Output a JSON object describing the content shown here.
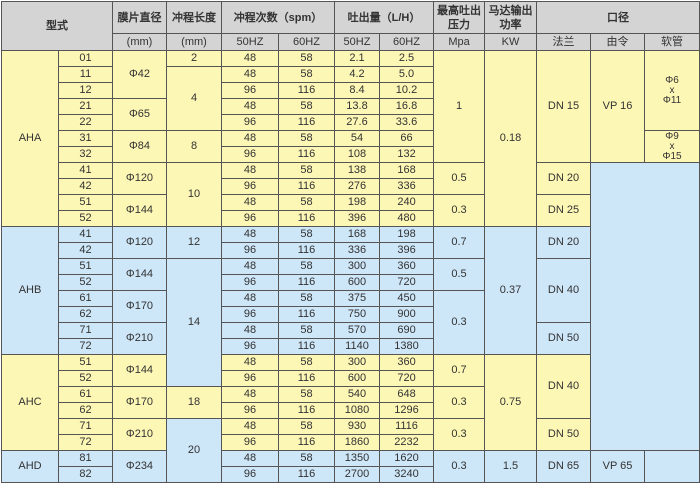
{
  "header": {
    "model": "型式",
    "diaphragm": "膜片直径",
    "stroke": "冲程长度",
    "spm": "冲程次数（spm）",
    "flow": "吐出量（L/H）",
    "pressure": "最高吐出压力",
    "power": "马达输出功率",
    "port": "口径",
    "diaphragm_unit": "(mm)",
    "stroke_unit": "(mm)",
    "hz50": "50HZ",
    "hz60": "60HZ",
    "pressure_unit": "Mpa",
    "power_unit": "KW",
    "flange": "法兰",
    "union": "由令",
    "hose": "软管"
  },
  "colors": {
    "header": "#d4d4d4",
    "yellow": "#fdf7b5",
    "blue": "#cde6f8"
  },
  "models": [
    "AHA",
    "AHB",
    "AHC",
    "AHD"
  ],
  "diaphragm": [
    "Φ42",
    "Φ65",
    "Φ84",
    "Φ120",
    "Φ144",
    "Φ120",
    "Φ144",
    "Φ170",
    "Φ210",
    "Φ144",
    "Φ170",
    "Φ210",
    "Φ234"
  ],
  "stroke": [
    "2",
    "4",
    "8",
    "10",
    "12",
    "14",
    "18",
    "20"
  ],
  "pressure": [
    "1",
    "0.5",
    "0.3",
    "0.7",
    "0.5",
    "0.3",
    "0.7",
    "0.3",
    "0.3",
    "0.3"
  ],
  "power": [
    "0.18",
    "0.37",
    "0.75",
    "1.5"
  ],
  "flange": [
    "DN 15",
    "DN 20",
    "DN 25",
    "DN 20",
    "DN 40",
    "DN 50",
    "DN 40",
    "DN 50",
    "DN 65"
  ],
  "union": [
    "VP 16",
    "VP 65"
  ],
  "hose": [
    {
      "a": "Φ6",
      "x": "x",
      "b": "Φ11"
    },
    {
      "a": "Φ9",
      "x": "x",
      "b": "Φ15"
    }
  ],
  "rows": [
    {
      "c": "01",
      "s5": "48",
      "s6": "58",
      "f5": "2.1",
      "f6": "2.5"
    },
    {
      "c": "11",
      "s5": "48",
      "s6": "58",
      "f5": "4.2",
      "f6": "5.0"
    },
    {
      "c": "12",
      "s5": "96",
      "s6": "116",
      "f5": "8.4",
      "f6": "10.2"
    },
    {
      "c": "21",
      "s5": "48",
      "s6": "58",
      "f5": "13.8",
      "f6": "16.8"
    },
    {
      "c": "22",
      "s5": "96",
      "s6": "116",
      "f5": "27.6",
      "f6": "33.6"
    },
    {
      "c": "31",
      "s5": "48",
      "s6": "58",
      "f5": "54",
      "f6": "66"
    },
    {
      "c": "32",
      "s5": "96",
      "s6": "116",
      "f5": "108",
      "f6": "132"
    },
    {
      "c": "41",
      "s5": "48",
      "s6": "58",
      "f5": "138",
      "f6": "168"
    },
    {
      "c": "42",
      "s5": "96",
      "s6": "116",
      "f5": "276",
      "f6": "336"
    },
    {
      "c": "51",
      "s5": "48",
      "s6": "58",
      "f5": "198",
      "f6": "240"
    },
    {
      "c": "52",
      "s5": "96",
      "s6": "116",
      "f5": "396",
      "f6": "480"
    },
    {
      "c": "41",
      "s5": "48",
      "s6": "58",
      "f5": "168",
      "f6": "198"
    },
    {
      "c": "42",
      "s5": "96",
      "s6": "116",
      "f5": "336",
      "f6": "396"
    },
    {
      "c": "51",
      "s5": "48",
      "s6": "58",
      "f5": "300",
      "f6": "360"
    },
    {
      "c": "52",
      "s5": "96",
      "s6": "116",
      "f5": "600",
      "f6": "720"
    },
    {
      "c": "61",
      "s5": "48",
      "s6": "58",
      "f5": "375",
      "f6": "450"
    },
    {
      "c": "62",
      "s5": "96",
      "s6": "116",
      "f5": "750",
      "f6": "900"
    },
    {
      "c": "71",
      "s5": "48",
      "s6": "58",
      "f5": "570",
      "f6": "690"
    },
    {
      "c": "72",
      "s5": "96",
      "s6": "116",
      "f5": "1140",
      "f6": "1380"
    },
    {
      "c": "51",
      "s5": "48",
      "s6": "58",
      "f5": "300",
      "f6": "360"
    },
    {
      "c": "52",
      "s5": "96",
      "s6": "116",
      "f5": "600",
      "f6": "720"
    },
    {
      "c": "61",
      "s5": "48",
      "s6": "58",
      "f5": "540",
      "f6": "648"
    },
    {
      "c": "62",
      "s5": "96",
      "s6": "116",
      "f5": "1080",
      "f6": "1296"
    },
    {
      "c": "71",
      "s5": "48",
      "s6": "58",
      "f5": "930",
      "f6": "1116"
    },
    {
      "c": "72",
      "s5": "96",
      "s6": "116",
      "f5": "1860",
      "f6": "2232"
    },
    {
      "c": "81",
      "s5": "48",
      "s6": "58",
      "f5": "1350",
      "f6": "1620"
    },
    {
      "c": "82",
      "s5": "96",
      "s6": "116",
      "f5": "2700",
      "f6": "3240"
    }
  ]
}
